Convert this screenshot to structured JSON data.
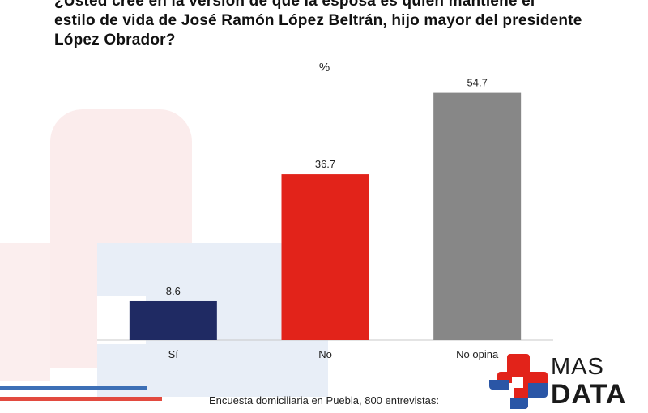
{
  "title_lines": [
    "¿Usted cree en la versión de que la esposa es quien mantiene el",
    "estilo de vida de José Ramón López Beltrán, hijo mayor del presidente",
    "López Obrador?"
  ],
  "unit_label": "%",
  "footnote": "Encuesta domiciliaria en Puebla, 800 entrevistas:",
  "logo": {
    "line1": "MAS",
    "line2": "DATA",
    "icon": "medical-cross-icon"
  },
  "colors": {
    "blue": "#1f2a63",
    "red": "#e2231a",
    "gray": "#878787",
    "logo_red": "#e2231a",
    "logo_blue": "#2a56a6"
  },
  "chart_data": {
    "type": "bar",
    "title": "¿Usted cree en la versión de que la esposa es quien mantiene el estilo de vida de José Ramón López Beltrán, hijo mayor del presidente López Obrador?",
    "ylabel": "%",
    "categories": [
      "Sí",
      "No",
      "No opina"
    ],
    "values": [
      8.6,
      36.7,
      54.7
    ],
    "value_labels": [
      "8.6",
      "36.7",
      "54.7"
    ],
    "bar_colors": [
      "#1f2a63",
      "#e2231a",
      "#878787"
    ],
    "ylim": [
      0,
      60
    ],
    "grid": false,
    "legend": "none"
  }
}
